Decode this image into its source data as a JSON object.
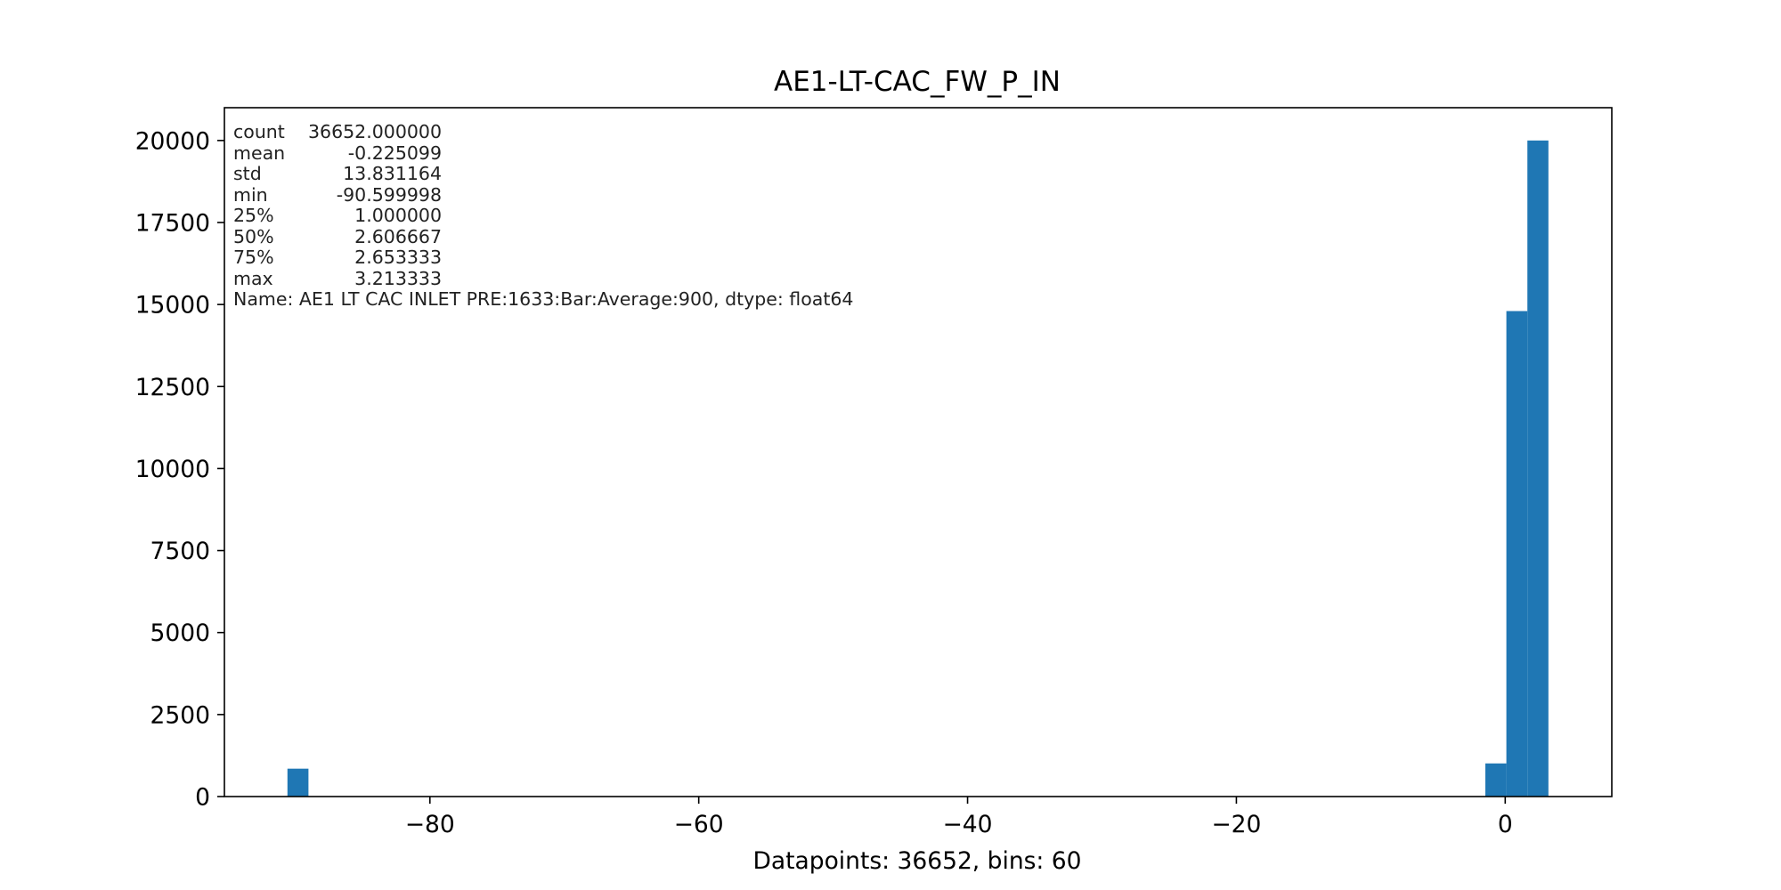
{
  "chart_data": {
    "type": "bar",
    "title": "AE1-LT-CAC_FW_P_IN",
    "xlabel": "Datapoints: 36652, bins: 60",
    "ylabel": "",
    "xlim": [
      -95.29,
      7.93
    ],
    "ylim": [
      0,
      21000
    ],
    "x_ticks": [
      -80,
      -60,
      -40,
      -20,
      0
    ],
    "x_tick_labels": [
      "−80",
      "−60",
      "−40",
      "−20",
      "0"
    ],
    "y_ticks": [
      0,
      2500,
      5000,
      7500,
      10000,
      12500,
      15000,
      17500,
      20000
    ],
    "y_tick_labels": [
      "0",
      "2500",
      "5000",
      "7500",
      "10000",
      "12500",
      "15000",
      "17500",
      "20000"
    ],
    "bin_width": 1.56355,
    "bins": [
      {
        "x0": -90.6,
        "count": 850
      },
      {
        "x0": -1.478,
        "count": 1010
      },
      {
        "x0": 0.086,
        "count": 14800
      },
      {
        "x0": 1.65,
        "count": 20000
      }
    ],
    "color": "#1f77b4",
    "grid": false,
    "legend": "none",
    "annotation": {
      "rows": [
        {
          "key": "count",
          "value": "36652.000000"
        },
        {
          "key": "mean",
          "value": "-0.225099"
        },
        {
          "key": "std",
          "value": "13.831164"
        },
        {
          "key": "min",
          "value": "-90.599998"
        },
        {
          "key": "25%",
          "value": "1.000000"
        },
        {
          "key": "50%",
          "value": "2.606667"
        },
        {
          "key": "75%",
          "value": "2.653333"
        },
        {
          "key": "max",
          "value": "3.213333"
        }
      ],
      "footer": "Name: AE1 LT CAC INLET PRE:1633:Bar:Average:900, dtype: float64"
    }
  }
}
